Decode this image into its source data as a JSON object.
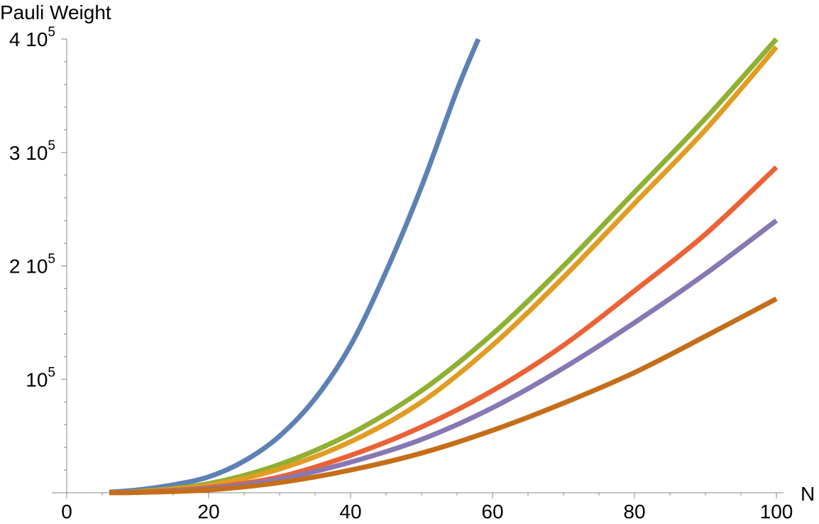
{
  "chart_data": {
    "type": "line",
    "title": "",
    "xlabel": "N",
    "ylabel": "Pauli Weight",
    "xlim": [
      0,
      100
    ],
    "ylim": [
      0,
      400000
    ],
    "x_ticks": [
      {
        "value": 0,
        "label": "0"
      },
      {
        "value": 20,
        "label": "20"
      },
      {
        "value": 40,
        "label": "40"
      },
      {
        "value": 60,
        "label": "60"
      },
      {
        "value": 80,
        "label": "80"
      },
      {
        "value": 100,
        "label": "100"
      }
    ],
    "y_ticks": [
      {
        "value": 100000,
        "mantissa": "",
        "base": "10",
        "exp": "5"
      },
      {
        "value": 200000,
        "mantissa": "2 ",
        "base": "10",
        "exp": "5"
      },
      {
        "value": 300000,
        "mantissa": "3 ",
        "base": "10",
        "exp": "5"
      },
      {
        "value": 400000,
        "mantissa": "4 ",
        "base": "10",
        "exp": "5"
      }
    ],
    "grid": false,
    "legend": "none",
    "series": [
      {
        "color": "#5E81B5",
        "x": [
          6,
          10,
          15,
          20,
          25,
          30,
          35,
          40,
          45,
          50,
          55,
          58
        ],
        "y": [
          500,
          2500,
          7000,
          14000,
          28000,
          50000,
          83000,
          130000,
          195000,
          270000,
          355000,
          400000
        ]
      },
      {
        "color": "#8FB032",
        "x": [
          6,
          10,
          20,
          30,
          40,
          50,
          60,
          70,
          80,
          90,
          100
        ],
        "y": [
          200,
          1000,
          8000,
          25000,
          52000,
          90000,
          140000,
          200000,
          265000,
          330000,
          400000
        ]
      },
      {
        "color": "#E19C24",
        "x": [
          6,
          10,
          20,
          30,
          40,
          50,
          60,
          70,
          80,
          90,
          100
        ],
        "y": [
          150,
          800,
          6500,
          21000,
          45000,
          80000,
          130000,
          190000,
          255000,
          320000,
          393000
        ]
      },
      {
        "color": "#EB6235",
        "x": [
          6,
          10,
          20,
          30,
          40,
          50,
          60,
          70,
          80,
          90,
          100
        ],
        "y": [
          100,
          500,
          4500,
          14000,
          33000,
          58000,
          90000,
          130000,
          178000,
          228000,
          287000
        ]
      },
      {
        "color": "#8778B3",
        "x": [
          6,
          10,
          20,
          30,
          40,
          50,
          60,
          70,
          80,
          90,
          100
        ],
        "y": [
          80,
          400,
          3500,
          12000,
          27000,
          47000,
          75000,
          110000,
          150000,
          193000,
          240000
        ]
      },
      {
        "color": "#C56E1A",
        "x": [
          6,
          10,
          20,
          30,
          40,
          50,
          60,
          70,
          80,
          90,
          100
        ],
        "y": [
          60,
          300,
          2500,
          9000,
          20000,
          35000,
          55000,
          79000,
          106000,
          138000,
          171000
        ]
      }
    ]
  }
}
